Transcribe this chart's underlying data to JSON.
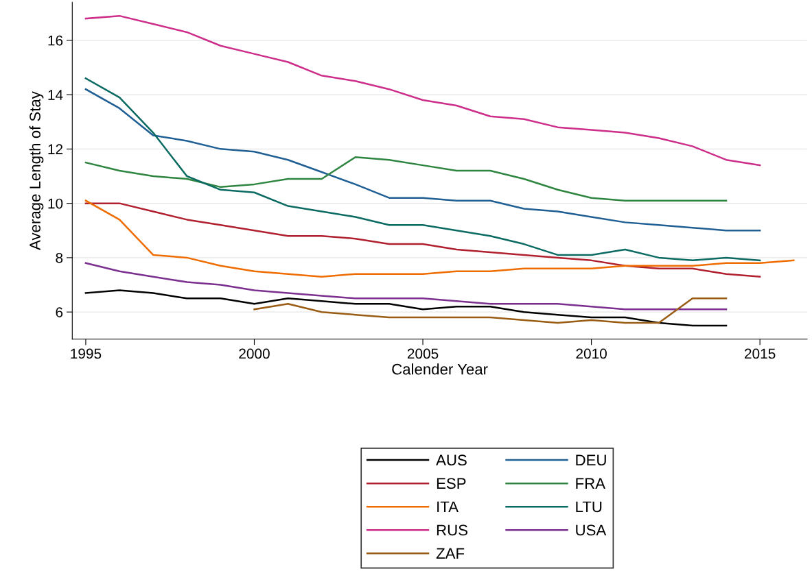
{
  "chart_data": {
    "type": "line",
    "xlabel": "Calender Year",
    "ylabel": "Average Length of Stay",
    "xlim": [
      1994.6,
      2016.4
    ],
    "xticks": [
      1995,
      2000,
      2005,
      2010,
      2015
    ],
    "ylim": [
      5.0,
      17.4
    ],
    "yticks": [
      6,
      8,
      10,
      12,
      14,
      16
    ],
    "grid": "y",
    "legend": "bottom",
    "marker": "none",
    "line_style": "solid",
    "series": [
      {
        "name": "AUS",
        "color": "#000000",
        "x": [
          1995,
          1996,
          1997,
          1998,
          1999,
          2000,
          2001,
          2002,
          2003,
          2004,
          2005,
          2006,
          2007,
          2008,
          2009,
          2010,
          2011,
          2012,
          2013,
          2014
        ],
        "values": [
          6.7,
          6.8,
          6.7,
          6.5,
          6.5,
          6.3,
          6.5,
          6.4,
          6.3,
          6.3,
          6.1,
          6.2,
          6.2,
          6.0,
          5.9,
          5.8,
          5.8,
          5.6,
          5.5,
          5.5
        ]
      },
      {
        "name": "DEU",
        "color": "#1f5f94",
        "x": [
          1995,
          1996,
          1997,
          1998,
          1999,
          2000,
          2001,
          2002,
          2003,
          2004,
          2005,
          2006,
          2007,
          2008,
          2009,
          2010,
          2011,
          2012,
          2013,
          2014,
          2015
        ],
        "values": [
          14.2,
          13.5,
          12.5,
          12.3,
          12.0,
          11.9,
          11.6,
          11.15,
          10.7,
          10.2,
          10.2,
          10.1,
          10.1,
          9.8,
          9.7,
          9.5,
          9.3,
          9.2,
          9.1,
          9.0,
          9.0
        ]
      },
      {
        "name": "ESP",
        "color": "#b0202e",
        "x": [
          1995,
          1996,
          1997,
          1998,
          1999,
          2000,
          2001,
          2002,
          2003,
          2004,
          2005,
          2006,
          2007,
          2008,
          2009,
          2010,
          2011,
          2012,
          2013,
          2014,
          2015
        ],
        "values": [
          10.0,
          10.0,
          9.7,
          9.4,
          9.2,
          9.0,
          8.8,
          8.8,
          8.7,
          8.5,
          8.5,
          8.3,
          8.2,
          8.1,
          8.0,
          7.9,
          7.7,
          7.6,
          7.6,
          7.4,
          7.3
        ]
      },
      {
        "name": "FRA",
        "color": "#2e8540",
        "x": [
          1995,
          1996,
          1997,
          1998,
          1999,
          2000,
          2001,
          2002,
          2003,
          2004,
          2005,
          2006,
          2007,
          2008,
          2009,
          2010,
          2011,
          2012,
          2013,
          2014
        ],
        "values": [
          11.5,
          11.2,
          11.0,
          10.9,
          10.6,
          10.7,
          10.9,
          10.9,
          11.7,
          11.6,
          11.4,
          11.2,
          11.2,
          10.9,
          10.5,
          10.2,
          10.1,
          10.1,
          10.1,
          10.1
        ]
      },
      {
        "name": "ITA",
        "color": "#ef6c00",
        "x": [
          1995,
          1996,
          1997,
          1998,
          1999,
          2000,
          2001,
          2002,
          2003,
          2004,
          2005,
          2006,
          2007,
          2008,
          2009,
          2010,
          2011,
          2012,
          2013,
          2014,
          2015,
          2016
        ],
        "values": [
          10.1,
          9.4,
          8.1,
          8.0,
          7.7,
          7.5,
          7.4,
          7.3,
          7.4,
          7.4,
          7.4,
          7.5,
          7.5,
          7.6,
          7.6,
          7.6,
          7.7,
          7.7,
          7.7,
          7.8,
          7.8,
          7.9
        ]
      },
      {
        "name": "LTU",
        "color": "#0b6b62",
        "x": [
          1995,
          1996,
          1997,
          1998,
          1999,
          2000,
          2001,
          2002,
          2003,
          2004,
          2005,
          2006,
          2007,
          2008,
          2009,
          2010,
          2011,
          2012,
          2013,
          2014,
          2015
        ],
        "values": [
          14.6,
          13.9,
          12.6,
          11.0,
          10.5,
          10.4,
          9.9,
          9.7,
          9.5,
          9.2,
          9.2,
          9.0,
          8.8,
          8.5,
          8.1,
          8.1,
          8.3,
          8.0,
          7.9,
          8.0,
          7.9
        ]
      },
      {
        "name": "RUS",
        "color": "#cc2e8a",
        "x": [
          1995,
          1996,
          1997,
          1998,
          1999,
          2000,
          2001,
          2002,
          2003,
          2004,
          2005,
          2006,
          2007,
          2008,
          2009,
          2010,
          2011,
          2012,
          2013,
          2014,
          2015
        ],
        "values": [
          16.8,
          16.9,
          16.6,
          16.3,
          15.8,
          15.5,
          15.2,
          14.7,
          14.5,
          14.2,
          13.8,
          13.6,
          13.2,
          13.1,
          12.8,
          12.7,
          12.6,
          12.4,
          12.1,
          11.6,
          11.4
        ]
      },
      {
        "name": "USA",
        "color": "#7b2f8e",
        "x": [
          1995,
          1996,
          1997,
          1998,
          1999,
          2000,
          2001,
          2002,
          2003,
          2004,
          2005,
          2006,
          2007,
          2008,
          2009,
          2010,
          2011,
          2012,
          2013,
          2014
        ],
        "values": [
          7.8,
          7.5,
          7.3,
          7.1,
          7.0,
          6.8,
          6.7,
          6.6,
          6.5,
          6.5,
          6.5,
          6.4,
          6.3,
          6.3,
          6.3,
          6.2,
          6.1,
          6.1,
          6.1,
          6.1
        ]
      },
      {
        "name": "ZAF",
        "color": "#9a5b13",
        "x": [
          2000,
          2001,
          2002,
          2003,
          2004,
          2005,
          2006,
          2007,
          2008,
          2009,
          2010,
          2011,
          2012,
          2013,
          2014
        ],
        "values": [
          6.1,
          6.3,
          6.0,
          5.9,
          5.8,
          5.8,
          5.8,
          5.8,
          5.7,
          5.6,
          5.7,
          5.6,
          5.6,
          6.5,
          6.5
        ]
      }
    ]
  }
}
